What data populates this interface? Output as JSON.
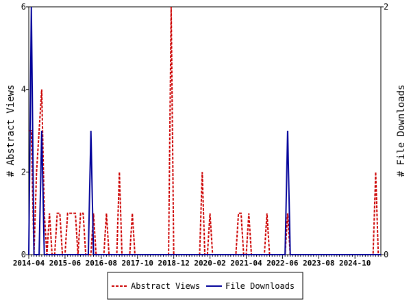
{
  "chart_data": {
    "type": "line",
    "y_label": "# Abstract Views",
    "y2_label": "# File Downloads",
    "categories": [
      "2014-04",
      null,
      null,
      null,
      null,
      null,
      null,
      null,
      null,
      null,
      null,
      null,
      null,
      null,
      "2015-06",
      null,
      null,
      null,
      null,
      null,
      null,
      null,
      null,
      null,
      null,
      null,
      null,
      null,
      "2016-08",
      null,
      null,
      null,
      null,
      null,
      null,
      null,
      null,
      null,
      null,
      null,
      null,
      null,
      "2017-10",
      null,
      null,
      null,
      null,
      null,
      null,
      null,
      null,
      null,
      null,
      null,
      null,
      null,
      "2018-12",
      null,
      null,
      null,
      null,
      null,
      null,
      null,
      null,
      null,
      null,
      null,
      null,
      null,
      "2020-02",
      null,
      null,
      null,
      null,
      null,
      null,
      null,
      null,
      null,
      null,
      null,
      null,
      null,
      "2021-04",
      null,
      null,
      null,
      null,
      null,
      null,
      null,
      null,
      null,
      null,
      null,
      null,
      null,
      "2022-06",
      null,
      null,
      null,
      null,
      null,
      null,
      null,
      null,
      null,
      null,
      null,
      null,
      null,
      "2023-08",
      null,
      null,
      null,
      null,
      null,
      null,
      null,
      null,
      null,
      null,
      null,
      null,
      null,
      "2024-10",
      null,
      null,
      null,
      null,
      null,
      null,
      null,
      null,
      null,
      null
    ],
    "series": [
      {
        "name": "Abstract Views",
        "color": "#cc0000",
        "dash": true,
        "values": [
          3,
          3,
          0,
          2,
          3,
          4,
          1,
          0,
          1,
          0,
          0,
          1,
          1,
          0,
          0,
          1,
          1,
          1,
          1,
          0,
          1,
          1,
          0,
          0,
          0,
          1,
          0,
          0,
          0,
          0,
          1,
          0,
          0,
          0,
          0,
          2,
          0,
          0,
          0,
          0,
          1,
          0,
          0,
          0,
          0,
          0,
          0,
          0,
          0,
          0,
          0,
          0,
          0,
          0,
          0,
          6,
          0,
          0,
          0,
          0,
          0,
          0,
          0,
          0,
          0,
          0,
          0,
          2,
          0,
          0,
          1,
          0,
          0,
          0,
          0,
          0,
          0,
          0,
          0,
          0,
          0,
          1,
          1,
          0,
          0,
          1,
          0,
          0,
          0,
          0,
          0,
          0,
          1,
          0,
          0,
          0,
          0,
          0,
          0,
          0,
          1,
          0,
          0,
          0,
          0,
          0,
          0,
          0,
          0,
          0,
          0,
          0,
          0,
          0,
          0,
          0,
          0,
          0,
          0,
          0,
          0,
          0,
          0,
          0,
          0,
          0,
          0,
          0,
          0,
          0,
          0,
          0,
          0,
          0,
          2,
          0,
          0
        ]
      },
      {
        "name": "File Downloads",
        "color": "#000099",
        "dash": false,
        "axis": "y2",
        "values": [
          0,
          2,
          0,
          0,
          0,
          1,
          0,
          0,
          0,
          0,
          0,
          0,
          0,
          0,
          0,
          0,
          0,
          0,
          0,
          0,
          0,
          0,
          0,
          0,
          1,
          0,
          0,
          0,
          0,
          0,
          0,
          0,
          0,
          0,
          0,
          0,
          0,
          0,
          0,
          0,
          0,
          0,
          0,
          0,
          0,
          0,
          0,
          0,
          0,
          0,
          0,
          0,
          0,
          0,
          0,
          0,
          0,
          0,
          0,
          0,
          0,
          0,
          0,
          0,
          0,
          0,
          0,
          0,
          0,
          0,
          0,
          0,
          0,
          0,
          0,
          0,
          0,
          0,
          0,
          0,
          0,
          0,
          0,
          0,
          0,
          0,
          0,
          0,
          0,
          0,
          0,
          0,
          0,
          0,
          0,
          0,
          0,
          0,
          0,
          0,
          1,
          0,
          0,
          0,
          0,
          0,
          0,
          0,
          0,
          0,
          0,
          0,
          0,
          0,
          0,
          0,
          0,
          0,
          0,
          0,
          0,
          0,
          0,
          0,
          0,
          0,
          0,
          0,
          0,
          0,
          0,
          0,
          0,
          0,
          0,
          0,
          0
        ]
      }
    ],
    "ylim": [
      0,
      6
    ],
    "yticks": [
      0,
      2,
      4,
      6
    ],
    "y2lim": [
      0,
      2
    ],
    "y2ticks": [
      0,
      2
    ]
  }
}
